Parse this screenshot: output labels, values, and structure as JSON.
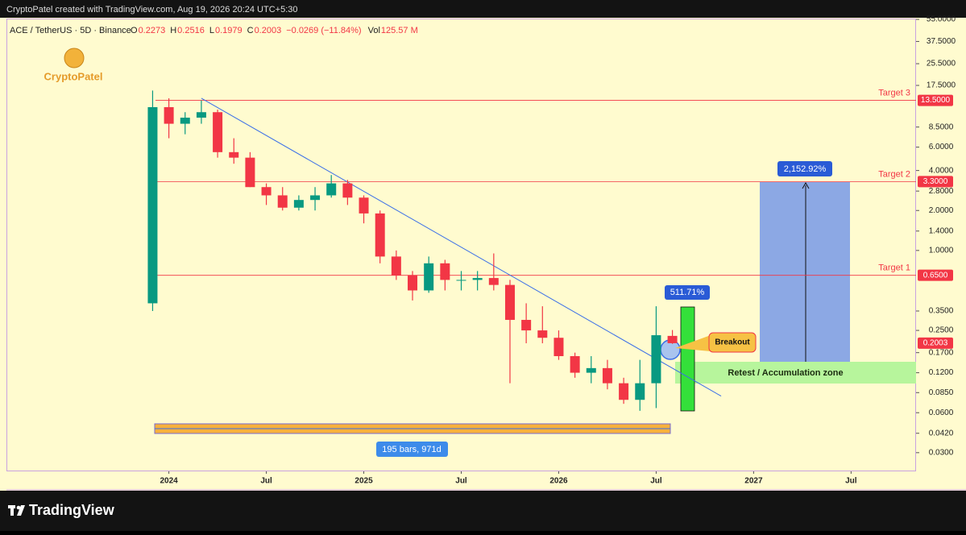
{
  "chart_data": {
    "type": "candlestick",
    "watermark": "CryptoPatel created with TradingView.com, Aug 19, 2026 20:24 UTC+5:30",
    "footer_brand": "TradingView",
    "logo_text": "CryptoPatel",
    "symbol": "ACE / TetherUS · 5D · Binance",
    "ohlc_header": {
      "open_label": "O",
      "open": 0.2273,
      "high_label": "H",
      "high": 0.2516,
      "low_label": "L",
      "low": 0.1979,
      "close_label": "C",
      "close": 0.2003,
      "change": "−0.0269 (−11.84%)",
      "volume_label": "Vol",
      "volume": "125.57 M"
    },
    "log_scale": true,
    "up_color": "#089981",
    "down_color": "#f23645",
    "x": [
      "2023-12",
      "2024-01",
      "2024-02",
      "2024-03",
      "2024-04",
      "2024-05",
      "2024-06",
      "2024-07",
      "2024-08",
      "2024-09",
      "2024-10",
      "2024-11",
      "2024-12",
      "2025-01",
      "2025-02",
      "2025-03",
      "2025-04",
      "2025-05",
      "2025-06",
      "2025-07",
      "2025-08",
      "2025-09",
      "2025-10",
      "2025-11",
      "2025-12",
      "2026-01",
      "2026-02",
      "2026-03",
      "2026-04",
      "2026-05",
      "2026-06",
      "2026-07",
      "2026-08"
    ],
    "open": [
      0.4,
      12,
      9,
      10,
      11,
      5.5,
      5,
      3,
      2.6,
      2.1,
      2.4,
      2.6,
      3.2,
      2.5,
      1.9,
      0.9,
      0.65,
      0.5,
      0.8,
      0.6,
      0.6,
      0.62,
      0.55,
      0.3,
      0.25,
      0.22,
      0.16,
      0.12,
      0.13,
      0.1,
      0.075,
      0.1,
      0.2273
    ],
    "high": [
      16,
      14,
      11,
      13.5,
      11.5,
      7,
      5.5,
      3.2,
      3,
      2.6,
      3,
      3.7,
      3.4,
      2.6,
      2,
      1,
      0.7,
      0.9,
      0.85,
      0.7,
      0.7,
      0.95,
      0.6,
      0.4,
      0.38,
      0.25,
      0.17,
      0.16,
      0.15,
      0.11,
      0.15,
      0.38,
      0.2516
    ],
    "low": [
      0.35,
      7,
      7.5,
      9,
      5,
      4.5,
      3,
      2.2,
      2,
      2,
      2,
      2.5,
      2.2,
      1.6,
      0.8,
      0.6,
      0.42,
      0.48,
      0.5,
      0.5,
      0.5,
      0.5,
      0.1,
      0.2,
      0.2,
      0.15,
      0.11,
      0.1,
      0.09,
      0.07,
      0.062,
      0.065,
      0.1979
    ],
    "close": [
      12,
      9,
      10,
      11,
      5.5,
      5,
      3,
      2.6,
      2.1,
      2.4,
      2.6,
      3.2,
      2.5,
      1.9,
      0.9,
      0.65,
      0.5,
      0.8,
      0.6,
      0.6,
      0.62,
      0.55,
      0.3,
      0.25,
      0.22,
      0.16,
      0.12,
      0.13,
      0.1,
      0.075,
      0.1,
      0.23,
      0.2003
    ],
    "xlim": [
      "2023-03",
      "2027-11"
    ],
    "xticks": [
      {
        "value": "2024-01",
        "label": "2024"
      },
      {
        "value": "2024-07",
        "label": "Jul"
      },
      {
        "value": "2025-01",
        "label": "2025"
      },
      {
        "value": "2025-07",
        "label": "Jul"
      },
      {
        "value": "2026-01",
        "label": "2026"
      },
      {
        "value": "2026-07",
        "label": "Jul"
      },
      {
        "value": "2027-01",
        "label": "2027"
      },
      {
        "value": "2027-07",
        "label": "Jul"
      }
    ],
    "ylim": [
      0.0217,
      55.8
    ],
    "yticks": [
      {
        "value": 55,
        "label": "55.0000"
      },
      {
        "value": 37.5,
        "label": "37.5000"
      },
      {
        "value": 25.5,
        "label": "25.5000"
      },
      {
        "value": 17.5,
        "label": "17.5000"
      },
      {
        "value": 8.5,
        "label": "8.5000"
      },
      {
        "value": 6,
        "label": "6.0000"
      },
      {
        "value": 4,
        "label": "4.0000"
      },
      {
        "value": 2.8,
        "label": "2.8000"
      },
      {
        "value": 2,
        "label": "2.0000"
      },
      {
        "value": 1.4,
        "label": "1.4000"
      },
      {
        "value": 1,
        "label": "1.0000"
      },
      {
        "value": 0.35,
        "label": "0.3500"
      },
      {
        "value": 0.25,
        "label": "0.2500"
      },
      {
        "value": 0.17,
        "label": "0.1700"
      },
      {
        "value": 0.12,
        "label": "0.1200"
      },
      {
        "value": 0.085,
        "label": "0.0850"
      },
      {
        "value": 0.06,
        "label": "0.0600"
      },
      {
        "value": 0.042,
        "label": "0.0420"
      },
      {
        "value": 0.03,
        "label": "0.0300"
      }
    ],
    "targets": {
      "names": [
        "Target 3",
        "Target 2",
        "Target 1"
      ],
      "values": [
        13.5,
        3.3,
        0.65
      ],
      "value_labels": [
        "13.5000",
        "3.3000",
        "0.6500"
      ],
      "color": "#f23645"
    },
    "trendline": {
      "x": [
        "2024-03",
        "2026-11"
      ],
      "values": [
        14,
        0.08
      ],
      "color": "#3a6ee8"
    },
    "annotations": {
      "measure": "2,152.92%",
      "breakout_move": "511.71%",
      "breakout": "Breakout",
      "zone": "Retest / Accumulation zone",
      "range": "195 bars, 971d"
    }
  }
}
